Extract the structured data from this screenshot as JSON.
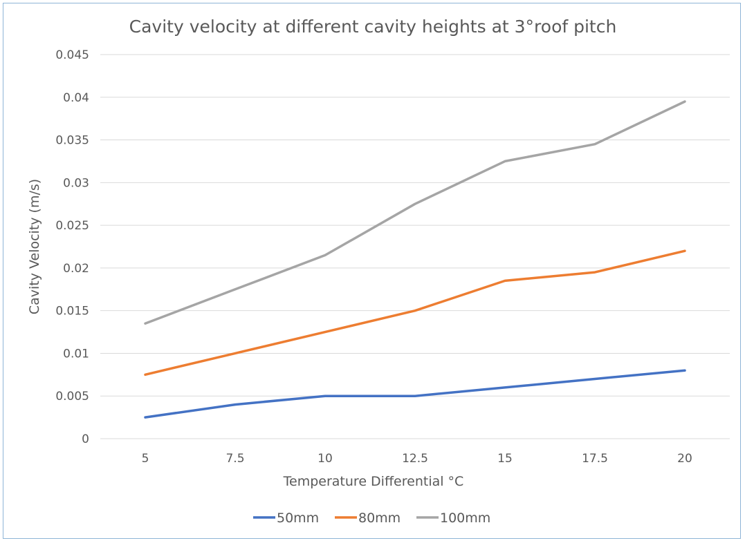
{
  "chart_data": {
    "type": "line",
    "title": "Cavity velocity at different cavity heights at 3°roof pitch",
    "xlabel": "Temperature Differential °C",
    "ylabel": "Cavity Velocity (m/s)",
    "categories": [
      "5",
      "7.5",
      "10",
      "12.5",
      "15",
      "17.5",
      "20"
    ],
    "y_ticks": [
      "0",
      "0.005",
      "0.01",
      "0.015",
      "0.02",
      "0.025",
      "0.03",
      "0.035",
      "0.04",
      "0.045"
    ],
    "ylim": [
      0,
      0.045
    ],
    "grid": true,
    "legend_position": "bottom",
    "series": [
      {
        "name": "50mm",
        "color": "#4472c4",
        "values": [
          0.0025,
          0.004,
          0.005,
          0.005,
          0.006,
          0.007,
          0.008
        ]
      },
      {
        "name": "80mm",
        "color": "#ed7d31",
        "values": [
          0.0075,
          0.01,
          0.0125,
          0.015,
          0.0185,
          0.0195,
          0.022
        ]
      },
      {
        "name": "100mm",
        "color": "#a5a5a5",
        "values": [
          0.0135,
          0.0175,
          0.0215,
          0.0275,
          0.0325,
          0.0345,
          0.0395
        ]
      }
    ]
  }
}
